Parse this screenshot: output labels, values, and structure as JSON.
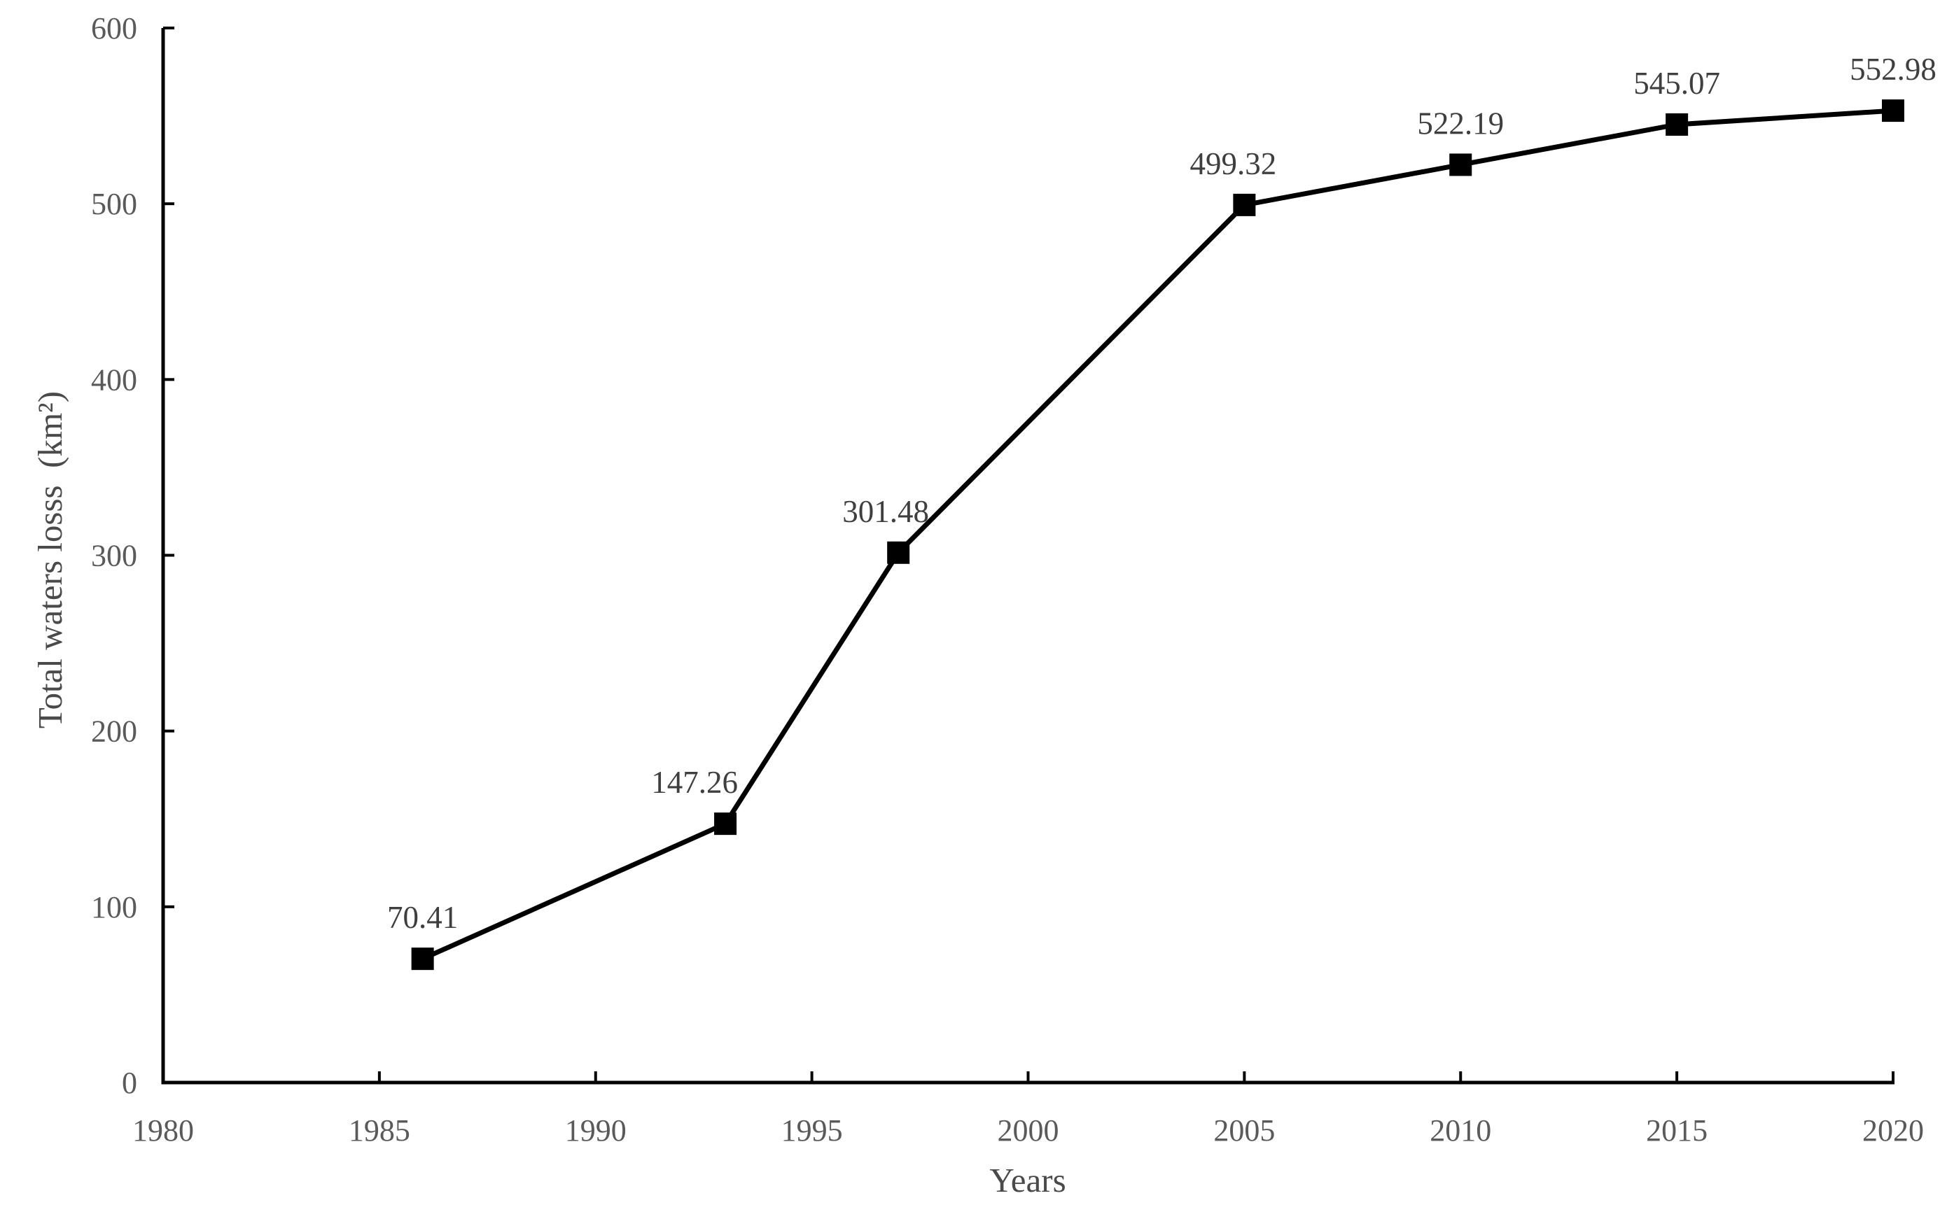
{
  "chart_data": {
    "type": "line",
    "title": "",
    "xlabel": "Years",
    "ylabel": "Total waters losss  (km²)",
    "x": [
      1986,
      1993,
      1997,
      2005,
      2010,
      2015,
      2020
    ],
    "values": [
      70.41,
      147.26,
      301.48,
      499.32,
      522.19,
      545.07,
      552.98
    ],
    "data_labels": [
      "70.41",
      "147.26",
      "301.48",
      "499.32",
      "522.19",
      "545.07",
      "552.98"
    ],
    "x_ticks": [
      1980,
      1985,
      1990,
      1995,
      2000,
      2005,
      2010,
      2015,
      2020
    ],
    "y_ticks": [
      0,
      100,
      200,
      300,
      400,
      500,
      600
    ],
    "xlim": [
      1980,
      2020
    ],
    "ylim": [
      0,
      600
    ],
    "grid": false,
    "legend": false,
    "marker": "square",
    "line_color": "#000000",
    "marker_color": "#000000",
    "axis_color": "#000000",
    "tick_label_color": "#5a5a5a",
    "axis_title_color": "#4a4a4a",
    "data_label_color": "#3f3f3f"
  }
}
